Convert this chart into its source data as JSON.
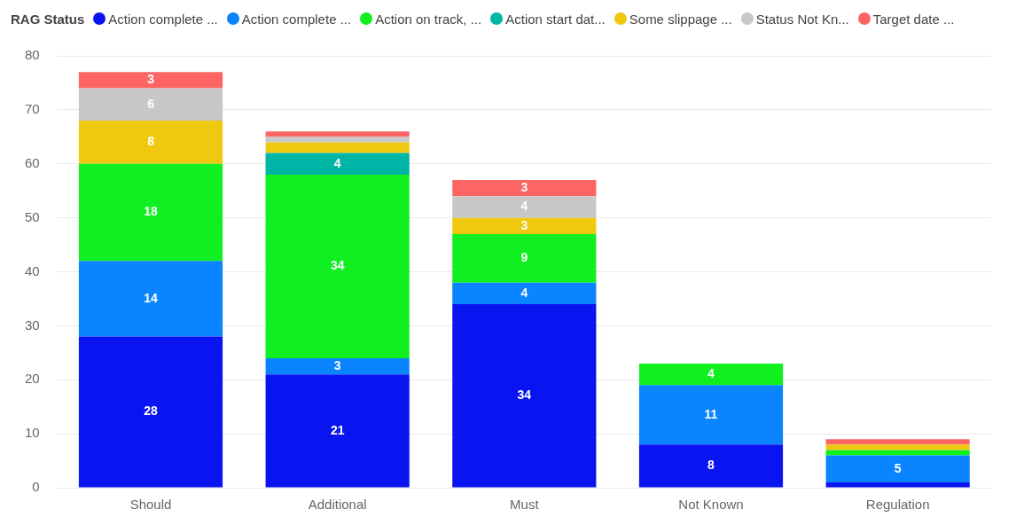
{
  "chart_data": {
    "type": "bar",
    "stacked": true,
    "legend_title": "RAG Status",
    "legend": "top left",
    "grid": "y",
    "ylim": [
      0,
      80
    ],
    "yticks": [
      0,
      10,
      20,
      30,
      40,
      50,
      60,
      70,
      80
    ],
    "categories": [
      "Should",
      "Additional",
      "Must",
      "Not Known",
      "Regulation"
    ],
    "series": [
      {
        "name": "Action complete ...",
        "color": "#0a14f0",
        "values": [
          28,
          21,
          34,
          8,
          1
        ],
        "value_labels": [
          "28",
          "21",
          "34",
          "8",
          null
        ]
      },
      {
        "name": "Action complete ...",
        "color": "#0a84ff",
        "values": [
          14,
          3,
          4,
          11,
          5
        ],
        "value_labels": [
          "14",
          "3",
          "4",
          "11",
          "5"
        ]
      },
      {
        "name": "Action on track, ...",
        "color": "#10f020",
        "values": [
          18,
          34,
          9,
          4,
          1
        ],
        "value_labels": [
          "18",
          "34",
          "9",
          "4",
          null
        ]
      },
      {
        "name": "Action start dat...",
        "color": "#00b5a5",
        "values": [
          null,
          4,
          null,
          null,
          null
        ],
        "value_labels": [
          null,
          "4",
          null,
          null,
          null
        ]
      },
      {
        "name": "Some slippage ...",
        "color": "#f0c810",
        "values": [
          8,
          2,
          3,
          null,
          1
        ],
        "value_labels": [
          "8",
          null,
          "3",
          null,
          null
        ]
      },
      {
        "name": "Status Not Kn...",
        "color": "#c8c8c8",
        "values": [
          6,
          1,
          4,
          null,
          null
        ],
        "value_labels": [
          "6",
          null,
          "4",
          null,
          null
        ]
      },
      {
        "name": "Target date ...",
        "color": "#fd6464",
        "values": [
          3,
          1,
          3,
          null,
          1
        ],
        "value_labels": [
          "3",
          null,
          "3",
          null,
          null
        ]
      }
    ]
  }
}
